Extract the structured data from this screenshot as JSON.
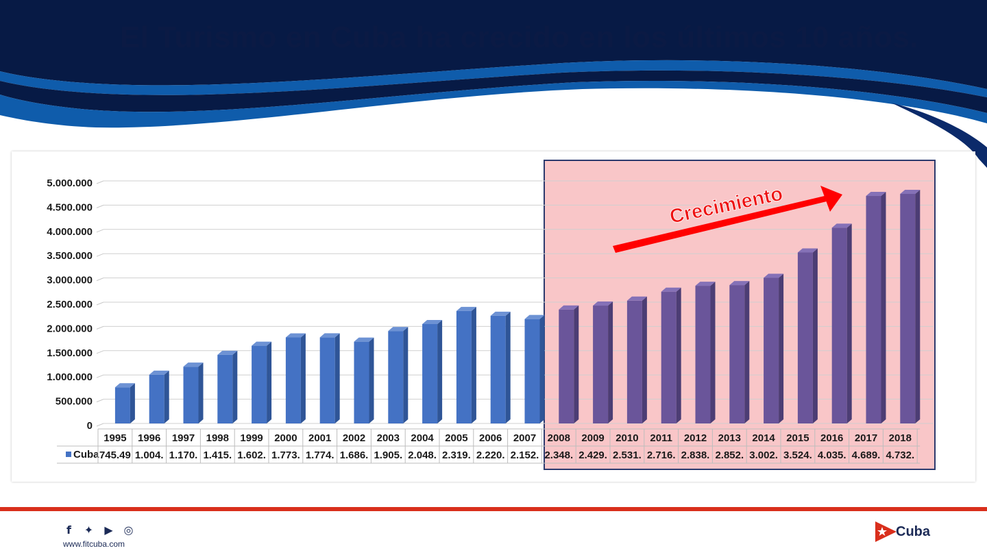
{
  "slide": {
    "title": "El Turismo en Cuba ha crecido en los últimos 10 años.",
    "website": "www.fitcuba.com",
    "brand": "Cuba"
  },
  "social_icons": [
    "facebook-icon",
    "twitter-icon",
    "youtube-icon",
    "instagram-icon"
  ],
  "colors": {
    "header_navy": "#071a45",
    "header_blue": "#0f5cab",
    "bar_blue": "#4472c4",
    "bar_purple": "#6a559a",
    "highlight_fill": "#f9c6c8",
    "highlight_border": "#2c3a6e",
    "arrow_red": "#ff0000",
    "rule_red": "#d92f1c"
  },
  "chart_data": {
    "type": "bar",
    "categories": [
      "1995",
      "1996",
      "1997",
      "1998",
      "1999",
      "2000",
      "2001",
      "2002",
      "2003",
      "2004",
      "2005",
      "2006",
      "2007",
      "2008",
      "2009",
      "2010",
      "2011",
      "2012",
      "2013",
      "2014",
      "2015",
      "2016",
      "2017",
      "2018"
    ],
    "series": [
      {
        "name": "Cuba",
        "values": [
          745495,
          1004000,
          1170000,
          1415000,
          1602000,
          1773000,
          1774000,
          1686000,
          1905000,
          2048000,
          2319000,
          2220000,
          2152000,
          2348000,
          2429000,
          2531000,
          2716000,
          2838000,
          2852000,
          3002000,
          3524000,
          4035000,
          4689000,
          4732000
        ],
        "table_labels": [
          "745.49",
          "1.004.",
          "1.170.",
          "1.415.",
          "1.602.",
          "1.773.",
          "1.774.",
          "1.686.",
          "1.905.",
          "2.048.",
          "2.319.",
          "2.220.",
          "2.152.",
          "2.348.",
          "2.429.",
          "2.531.",
          "2.716.",
          "2.838.",
          "2.852.",
          "3.002.",
          "3.524.",
          "4.035.",
          "4.689.",
          "4.732."
        ]
      }
    ],
    "y_ticks": [
      "0",
      "500.000",
      "1.000.000",
      "1.500.000",
      "2.000.000",
      "2.500.000",
      "3.000.000",
      "3.500.000",
      "4.000.000",
      "4.500.000",
      "5.000.000"
    ],
    "ylim": [
      0,
      5000000
    ],
    "grid": true,
    "data_table": true,
    "legend": "data-table",
    "highlight": {
      "from": "2008",
      "to": "2018"
    },
    "annotation": "Crecimiento"
  }
}
